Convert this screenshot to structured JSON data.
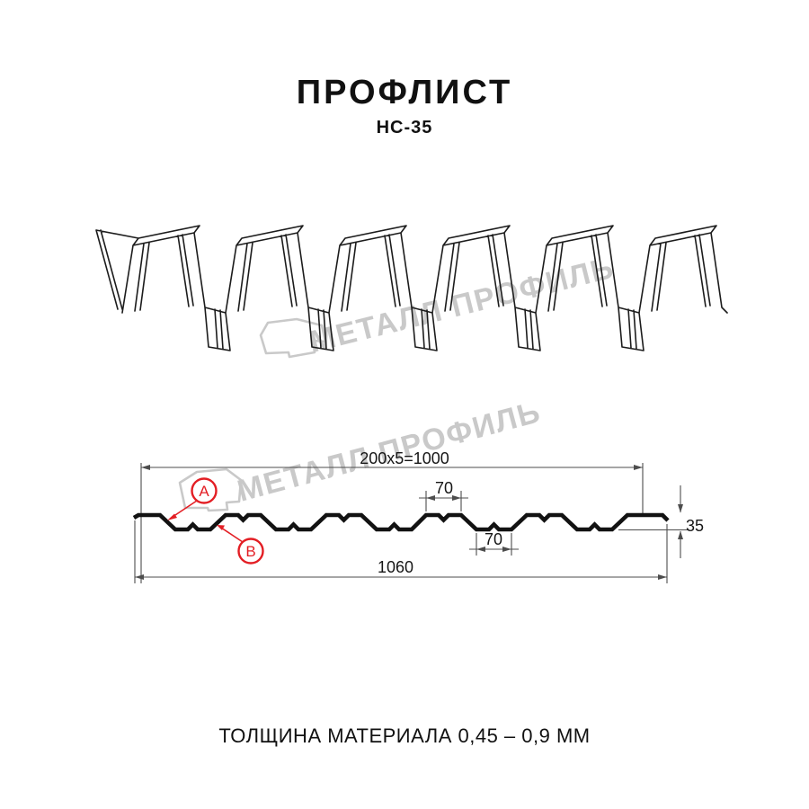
{
  "page": {
    "title": "ПРОФЛИСТ",
    "subtitle": "НС-35",
    "footer": "ТОЛЩИНА МАТЕРИАЛА 0,45 – 0,9 ММ"
  },
  "watermark": {
    "brand": "МЕТАЛЛ ПРОФИЛЬ"
  },
  "dimensions": {
    "working_width": "200x5=1000",
    "overall_width": "1060",
    "rib_top_width": "70",
    "rib_bottom_width": "70",
    "profile_height": "35"
  },
  "markers": {
    "a": "A",
    "b": "B"
  },
  "colors": {
    "accent_red": "#e31e24",
    "line": "#1c1c1c",
    "dimension": "#4d4d4d",
    "watermark": "#c9c9c9",
    "text": "#111111"
  }
}
